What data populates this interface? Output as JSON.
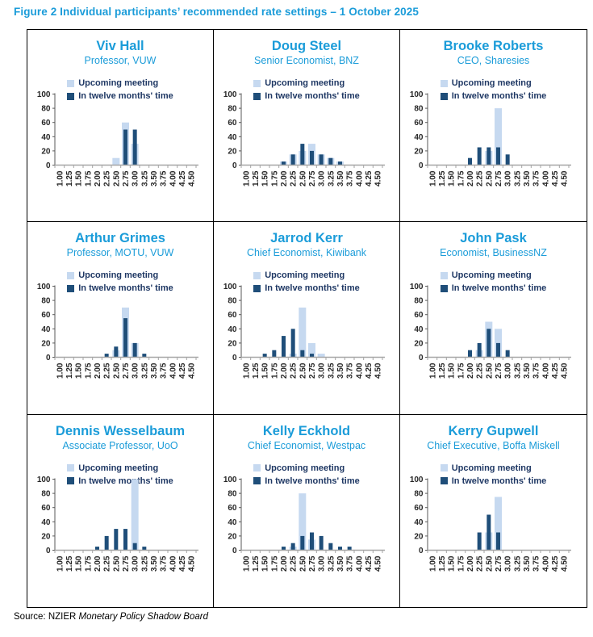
{
  "title": "Figure 2 Individual participants’ recommended rate settings – 1 October 2025",
  "source": {
    "prefix": "Source: NZIER ",
    "publication": "Monetary Policy Shadow Board"
  },
  "colors": {
    "accent_blue": "#1b9cd9",
    "upcoming_bar": "#c6d9f0",
    "twelve_months_bar": "#1f4e79",
    "legend_text": "#1f3864",
    "axis_text": "#262626"
  },
  "chart_data": {
    "type": "bar",
    "categories": [
      "1.00",
      "1.25",
      "1.50",
      "1.75",
      "2.00",
      "2.25",
      "2.50",
      "2.75",
      "3.00",
      "3.25",
      "3.50",
      "3.75",
      "4.00",
      "4.25",
      "4.50"
    ],
    "ylim": [
      0,
      100
    ],
    "yticks": [
      0,
      20,
      40,
      60,
      80,
      100
    ],
    "legend_position": "top",
    "series_names": [
      "Upcoming meeting",
      "In twelve months' time"
    ],
    "panels": [
      {
        "name": "Viv Hall",
        "role": "Professor, VUW",
        "series": [
          {
            "name": "Upcoming meeting",
            "values": [
              0,
              0,
              0,
              0,
              0,
              0,
              10,
              60,
              30,
              0,
              0,
              0,
              0,
              0,
              0
            ]
          },
          {
            "name": "In twelve months' time",
            "values": [
              0,
              0,
              0,
              0,
              0,
              0,
              0,
              50,
              50,
              0,
              0,
              0,
              0,
              0,
              0
            ]
          }
        ]
      },
      {
        "name": "Doug Steel",
        "role": "Senior Economist, BNZ",
        "series": [
          {
            "name": "Upcoming meeting",
            "values": [
              0,
              0,
              0,
              0,
              5,
              15,
              20,
              30,
              15,
              10,
              5,
              0,
              0,
              0,
              0
            ]
          },
          {
            "name": "In twelve months' time",
            "values": [
              0,
              0,
              0,
              0,
              5,
              15,
              30,
              20,
              15,
              10,
              5,
              0,
              0,
              0,
              0
            ]
          }
        ]
      },
      {
        "name": "Brooke Roberts",
        "role": "CEO, Sharesies",
        "series": [
          {
            "name": "Upcoming meeting",
            "values": [
              0,
              0,
              0,
              0,
              0,
              0,
              20,
              80,
              0,
              0,
              0,
              0,
              0,
              0,
              0
            ]
          },
          {
            "name": "In twelve months' time",
            "values": [
              0,
              0,
              0,
              0,
              10,
              25,
              25,
              25,
              15,
              0,
              0,
              0,
              0,
              0,
              0
            ]
          }
        ]
      },
      {
        "name": "Arthur Grimes",
        "role": "Professor, MOTU, VUW",
        "series": [
          {
            "name": "Upcoming meeting",
            "values": [
              0,
              0,
              0,
              0,
              0,
              0,
              10,
              70,
              20,
              0,
              0,
              0,
              0,
              0,
              0
            ]
          },
          {
            "name": "In twelve months' time",
            "values": [
              0,
              0,
              0,
              0,
              0,
              5,
              15,
              55,
              20,
              5,
              0,
              0,
              0,
              0,
              0
            ]
          }
        ]
      },
      {
        "name": "Jarrod Kerr",
        "role": "Chief Economist, Kiwibank",
        "series": [
          {
            "name": "Upcoming meeting",
            "values": [
              0,
              0,
              0,
              0,
              0,
              5,
              70,
              20,
              5,
              0,
              0,
              0,
              0,
              0,
              0
            ]
          },
          {
            "name": "In twelve months' time",
            "values": [
              0,
              0,
              5,
              10,
              30,
              40,
              10,
              5,
              0,
              0,
              0,
              0,
              0,
              0,
              0
            ]
          }
        ]
      },
      {
        "name": "John Pask",
        "role": "Economist, BusinessNZ",
        "series": [
          {
            "name": "Upcoming meeting",
            "values": [
              0,
              0,
              0,
              0,
              0,
              10,
              50,
              40,
              0,
              0,
              0,
              0,
              0,
              0,
              0
            ]
          },
          {
            "name": "In twelve months' time",
            "values": [
              0,
              0,
              0,
              0,
              10,
              20,
              40,
              20,
              10,
              0,
              0,
              0,
              0,
              0,
              0
            ]
          }
        ]
      },
      {
        "name": "Dennis Wesselbaum",
        "role": "Associate Professor, UoO",
        "series": [
          {
            "name": "Upcoming meeting",
            "values": [
              0,
              0,
              0,
              0,
              0,
              0,
              0,
              0,
              100,
              0,
              0,
              0,
              0,
              0,
              0
            ]
          },
          {
            "name": "In twelve months' time",
            "values": [
              0,
              0,
              0,
              0,
              5,
              20,
              30,
              30,
              10,
              5,
              0,
              0,
              0,
              0,
              0
            ]
          }
        ]
      },
      {
        "name": "Kelly Eckhold",
        "role": "Chief Economist, Westpac",
        "series": [
          {
            "name": "Upcoming meeting",
            "values": [
              0,
              0,
              0,
              0,
              0,
              5,
              80,
              15,
              0,
              0,
              0,
              0,
              0,
              0,
              0
            ]
          },
          {
            "name": "In twelve months' time",
            "values": [
              0,
              0,
              0,
              0,
              5,
              10,
              20,
              25,
              20,
              10,
              5,
              5,
              0,
              0,
              0
            ]
          }
        ]
      },
      {
        "name": "Kerry Gupwell",
        "role": "Chief Executive, Boffa Miskell",
        "series": [
          {
            "name": "Upcoming meeting",
            "values": [
              0,
              0,
              0,
              0,
              0,
              0,
              25,
              75,
              0,
              0,
              0,
              0,
              0,
              0,
              0
            ]
          },
          {
            "name": "In twelve months' time",
            "values": [
              0,
              0,
              0,
              0,
              0,
              25,
              50,
              25,
              0,
              0,
              0,
              0,
              0,
              0,
              0
            ]
          }
        ]
      }
    ]
  }
}
